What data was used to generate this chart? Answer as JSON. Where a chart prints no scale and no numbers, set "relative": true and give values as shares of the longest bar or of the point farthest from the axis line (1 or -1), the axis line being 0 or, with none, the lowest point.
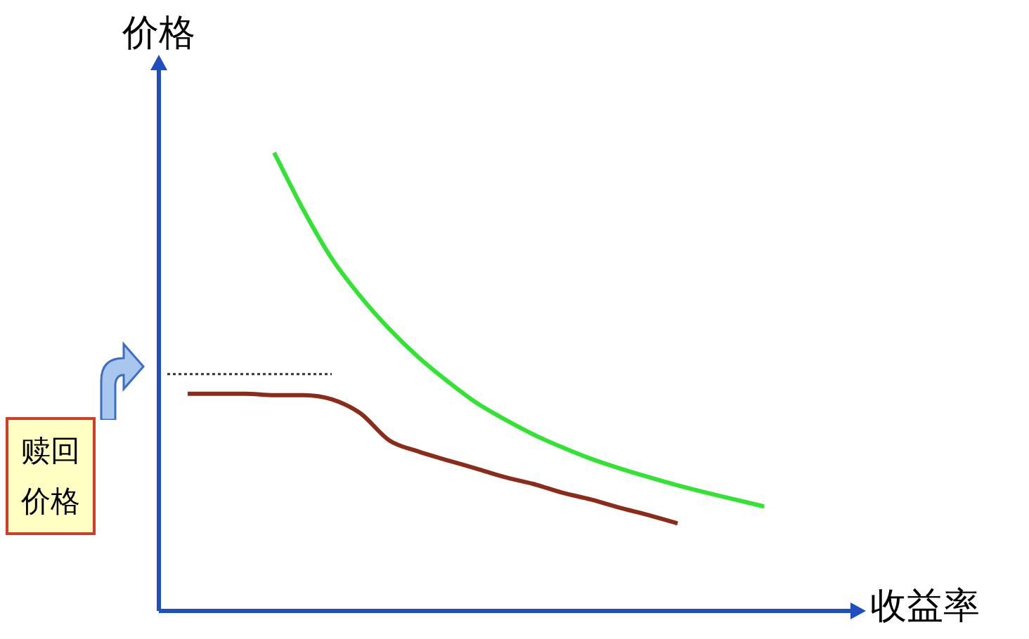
{
  "chart_data": {
    "type": "line",
    "relative": true,
    "xlabel": "收益率",
    "ylabel": "价格",
    "marker": "none",
    "categories": [
      null,
      null,
      null,
      null,
      null,
      null,
      null,
      null,
      null,
      null,
      null,
      null,
      null,
      null,
      null,
      null,
      null,
      null,
      null,
      null,
      null,
      null,
      null,
      null,
      null
    ],
    "series": [
      {
        "color": "#33e333",
        "values": [
          null,
          null,
          null,
          null,
          1.0,
          0.877,
          0.769,
          0.686,
          0.615,
          0.554,
          0.502,
          0.455,
          0.418,
          0.385,
          0.357,
          0.332,
          0.311,
          0.292,
          0.274,
          0.258,
          0.243,
          0.228,
          null,
          null,
          null
        ]
      },
      {
        "color": "#8b2c1a",
        "values": [
          null,
          0.474,
          0.474,
          0.474,
          0.471,
          0.471,
          0.462,
          0.431,
          0.372,
          0.348,
          0.329,
          0.311,
          0.292,
          0.277,
          0.258,
          0.243,
          0.225,
          0.209,
          0.191,
          null,
          null,
          null,
          null,
          null,
          null
        ]
      }
    ],
    "annotations": [
      "赎回价格"
    ],
    "ref_lines": [
      {
        "axis": "y",
        "value": 0.517,
        "color": "#333333",
        "line_style": "dotted"
      }
    ]
  }
}
